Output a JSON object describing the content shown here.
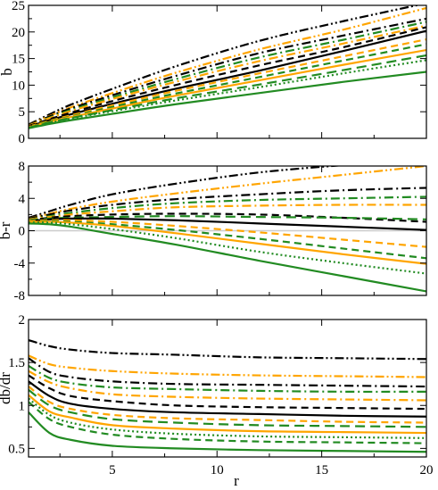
{
  "chart_data": [
    {
      "type": "line",
      "ylabel": "b",
      "xlabel": "",
      "xlim": [
        1,
        20
      ],
      "ylim": [
        0,
        25
      ],
      "yticks": [
        0,
        5,
        10,
        15,
        20,
        25
      ],
      "x": [
        1,
        2,
        3,
        5,
        8,
        12,
        16,
        20
      ],
      "series": [
        {
          "color": "#000000",
          "dash": "dashdotdot",
          "values": [
            2.6,
            4.5,
            6.3,
            9.3,
            13.5,
            18.3,
            22.0,
            25.4
          ]
        },
        {
          "color": "#FFA500",
          "dash": "dashdotdot",
          "values": [
            2.5,
            4.2,
            5.8,
            8.5,
            12.3,
            16.7,
            20.4,
            24.5
          ]
        },
        {
          "color": "#000000",
          "dash": "dashdot",
          "values": [
            2.5,
            4.1,
            5.6,
            8.1,
            11.7,
            16.0,
            19.3,
            22.5
          ]
        },
        {
          "color": "#228B22",
          "dash": "dashdot",
          "values": [
            2.4,
            3.9,
            5.3,
            7.7,
            11.1,
            15.2,
            18.5,
            21.9
          ]
        },
        {
          "color": "#FFA500",
          "dash": "dashdot",
          "values": [
            2.4,
            3.8,
            5.1,
            7.4,
            10.6,
            14.5,
            17.8,
            21.2
          ]
        },
        {
          "color": "#000000",
          "dash": "dash",
          "values": [
            2.3,
            3.6,
            4.8,
            7.0,
            10.0,
            13.7,
            17.1,
            20.9
          ]
        },
        {
          "color": "#000000",
          "dash": "solid",
          "values": [
            2.2,
            3.4,
            4.5,
            6.5,
            9.3,
            12.7,
            16.4,
            20.2
          ]
        },
        {
          "color": "#FFA500",
          "dash": "dash",
          "values": [
            2.2,
            3.3,
            4.3,
            6.2,
            8.9,
            12.2,
            15.4,
            18.6
          ]
        },
        {
          "color": "#228B22",
          "dash": "dash",
          "values": [
            2.1,
            3.2,
            4.1,
            5.9,
            8.4,
            11.5,
            14.6,
            17.7
          ]
        },
        {
          "color": "#FFA500",
          "dash": "solid",
          "values": [
            2.1,
            3.1,
            4.0,
            5.6,
            8.0,
            10.9,
            13.8,
            16.6
          ]
        },
        {
          "color": "#228B22",
          "dash": "longdash",
          "values": [
            2.0,
            3.0,
            3.8,
            5.3,
            7.5,
            10.1,
            12.8,
            15.6
          ]
        },
        {
          "color": "#228B22",
          "dash": "dot",
          "values": [
            2.0,
            2.9,
            3.7,
            5.1,
            7.1,
            9.6,
            12.2,
            14.7
          ]
        },
        {
          "color": "#228B22",
          "dash": "solid",
          "values": [
            1.9,
            2.7,
            3.4,
            4.6,
            6.4,
            8.5,
            10.6,
            12.5
          ]
        }
      ]
    },
    {
      "type": "line",
      "ylabel": "b-r",
      "xlabel": "",
      "xlim": [
        1,
        20
      ],
      "ylim": [
        -8,
        8
      ],
      "yticks": [
        -8,
        -4,
        0,
        4,
        8
      ],
      "zero_line_color": "#cccccc",
      "x": [
        1,
        2,
        3,
        5,
        8,
        12,
        16,
        20
      ],
      "series": [
        {
          "color": "#000000",
          "dash": "dashdotdot",
          "values": [
            1.6,
            2.4,
            3.2,
            4.5,
            5.8,
            7.2,
            8.1,
            8.8
          ]
        },
        {
          "color": "#FFA500",
          "dash": "dashdotdot",
          "values": [
            1.5,
            2.1,
            2.7,
            3.6,
            4.6,
            5.8,
            6.9,
            8.0
          ]
        },
        {
          "color": "#000000",
          "dash": "dashdot",
          "values": [
            1.5,
            2.0,
            2.5,
            3.2,
            3.9,
            4.5,
            5.0,
            5.3
          ]
        },
        {
          "color": "#228B22",
          "dash": "dashdot",
          "values": [
            1.4,
            1.8,
            2.2,
            2.8,
            3.4,
            3.8,
            4.0,
            4.2
          ]
        },
        {
          "color": "#FFA500",
          "dash": "dashdot",
          "values": [
            1.4,
            1.7,
            2.0,
            2.4,
            2.9,
            3.1,
            3.2,
            3.2
          ]
        },
        {
          "color": "#000000",
          "dash": "dash",
          "values": [
            1.3,
            1.6,
            1.8,
            2.0,
            2.1,
            2.0,
            1.6,
            1.1
          ]
        },
        {
          "color": "#228B22",
          "dash": "longdash",
          "values": [
            1.3,
            1.5,
            1.6,
            1.7,
            1.8,
            1.7,
            1.6,
            1.4
          ]
        },
        {
          "color": "#000000",
          "dash": "solid",
          "values": [
            1.2,
            1.4,
            1.5,
            1.5,
            1.3,
            0.9,
            0.5,
            0.1
          ]
        },
        {
          "color": "#FFA500",
          "dash": "dash",
          "values": [
            1.2,
            1.3,
            1.3,
            1.1,
            0.6,
            -0.2,
            -1.1,
            -2.0
          ]
        },
        {
          "color": "#228B22",
          "dash": "dash",
          "values": [
            1.1,
            1.2,
            1.1,
            0.8,
            0.1,
            -1.0,
            -2.2,
            -3.4
          ]
        },
        {
          "color": "#FFA500",
          "dash": "solid",
          "values": [
            1.1,
            1.1,
            1.0,
            0.6,
            -0.3,
            -1.6,
            -2.9,
            -4.1
          ]
        },
        {
          "color": "#228B22",
          "dash": "dot",
          "values": [
            1.0,
            1.0,
            0.8,
            0.2,
            -0.9,
            -2.6,
            -4.0,
            -5.3
          ]
        },
        {
          "color": "#228B22",
          "dash": "solid",
          "values": [
            0.9,
            0.8,
            0.5,
            -0.4,
            -1.7,
            -3.7,
            -5.6,
            -7.5
          ]
        }
      ]
    },
    {
      "type": "line",
      "ylabel": "db/dr",
      "xlabel": "r",
      "xlim": [
        1,
        20
      ],
      "ylim": [
        0.4,
        2.0
      ],
      "yticks": [
        0.5,
        1.0,
        1.5,
        2.0
      ],
      "yticklabels": [
        "0.5",
        "1",
        "1.5",
        "2"
      ],
      "xticks": [
        5,
        10,
        15,
        20
      ],
      "x": [
        1,
        2,
        3,
        5,
        8,
        12,
        16,
        20
      ],
      "series": [
        {
          "color": "#000000",
          "dash": "dashdotdot",
          "values": [
            1.76,
            1.69,
            1.65,
            1.61,
            1.59,
            1.56,
            1.55,
            1.54
          ]
        },
        {
          "color": "#FFA500",
          "dash": "dashdotdot",
          "values": [
            1.58,
            1.48,
            1.44,
            1.4,
            1.37,
            1.35,
            1.34,
            1.33
          ]
        },
        {
          "color": "#000000",
          "dash": "dashdot",
          "values": [
            1.55,
            1.39,
            1.33,
            1.28,
            1.25,
            1.24,
            1.23,
            1.22
          ]
        },
        {
          "color": "#228B22",
          "dash": "dashdot",
          "values": [
            1.46,
            1.32,
            1.26,
            1.21,
            1.19,
            1.17,
            1.16,
            1.16
          ]
        },
        {
          "color": "#FFA500",
          "dash": "dashdot",
          "values": [
            1.4,
            1.27,
            1.2,
            1.13,
            1.1,
            1.08,
            1.07,
            1.06
          ]
        },
        {
          "color": "#000000",
          "dash": "dash",
          "values": [
            1.35,
            1.2,
            1.11,
            1.05,
            1.0,
            0.98,
            0.97,
            0.96
          ]
        },
        {
          "color": "#000000",
          "dash": "solid",
          "values": [
            1.28,
            1.11,
            1.02,
            0.96,
            0.92,
            0.9,
            0.88,
            0.87
          ]
        },
        {
          "color": "#FFA500",
          "dash": "dash",
          "values": [
            1.22,
            1.04,
            0.96,
            0.89,
            0.85,
            0.83,
            0.81,
            0.8
          ]
        },
        {
          "color": "#228B22",
          "dash": "longdash",
          "values": [
            1.18,
            1.0,
            0.92,
            0.84,
            0.8,
            0.77,
            0.76,
            0.75
          ]
        },
        {
          "color": "#FFA500",
          "dash": "solid",
          "values": [
            1.12,
            0.93,
            0.86,
            0.77,
            0.73,
            0.7,
            0.69,
            0.68
          ]
        },
        {
          "color": "#228B22",
          "dash": "dot",
          "values": [
            1.08,
            0.89,
            0.8,
            0.72,
            0.67,
            0.64,
            0.63,
            0.62
          ]
        },
        {
          "color": "#228B22",
          "dash": "dash",
          "values": [
            1.04,
            0.84,
            0.75,
            0.66,
            0.61,
            0.58,
            0.57,
            0.56
          ]
        },
        {
          "color": "#228B22",
          "dash": "solid",
          "values": [
            0.92,
            0.68,
            0.6,
            0.53,
            0.5,
            0.48,
            0.47,
            0.46
          ]
        }
      ]
    }
  ]
}
